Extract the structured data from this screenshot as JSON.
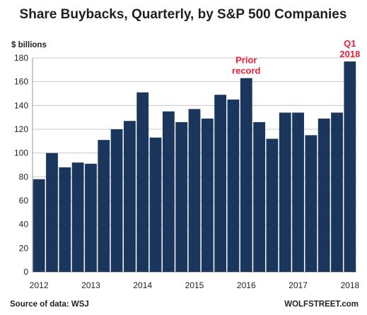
{
  "chart_data": {
    "type": "bar",
    "title": "Share Buybacks, Quarterly, by S&P 500 Companies",
    "ylabel": "$ billions",
    "xlabel": "",
    "ylim": [
      0,
      180
    ],
    "yticks": [
      0,
      20,
      40,
      60,
      80,
      100,
      120,
      140,
      160,
      180
    ],
    "xtick_labels": [
      {
        "label": "2012",
        "index": 0
      },
      {
        "label": "2013",
        "index": 4
      },
      {
        "label": "2014",
        "index": 8
      },
      {
        "label": "2015",
        "index": 12
      },
      {
        "label": "2016",
        "index": 16
      },
      {
        "label": "2017",
        "index": 20
      },
      {
        "label": "2018",
        "index": 24
      }
    ],
    "values": [
      78,
      100,
      88,
      92,
      91,
      111,
      120,
      127,
      151,
      113,
      135,
      126,
      137,
      129,
      149,
      145,
      163,
      126,
      112,
      134,
      134,
      115,
      129,
      134,
      177
    ],
    "grid": true,
    "colors": {
      "bar": "#1b365d",
      "grid": "#c8c8c8",
      "annotation": "#e8203a"
    },
    "annotations": [
      {
        "lines": [
          "Prior",
          "record"
        ],
        "bar_index": 16
      },
      {
        "lines": [
          "Q1",
          "2018"
        ],
        "bar_index": 24
      }
    ]
  },
  "footer": {
    "source": "Source of data: WSJ",
    "brand": "WOLFSTREET.com"
  }
}
